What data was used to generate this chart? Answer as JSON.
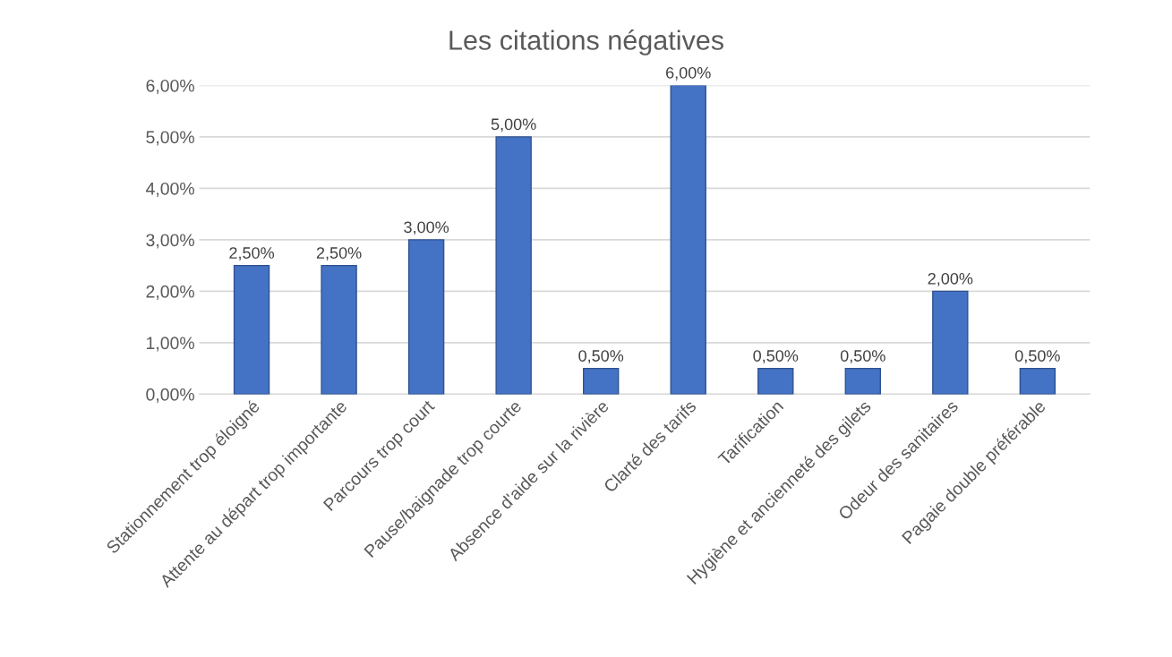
{
  "chart_data": {
    "type": "bar",
    "title": "Les citations négatives",
    "categories": [
      "Stationnement trop éloigné",
      "Attente au départ trop importante",
      "Parcours trop court",
      "Pause/baignade trop courte",
      "Absence d'aide sur la rivière",
      "Clarté des tarifs",
      "Tarification",
      "Hygiène et ancienneté des gilets",
      "Odeur des sanitaires",
      "Pagaie double préférable"
    ],
    "values": [
      2.5,
      2.5,
      3.0,
      5.0,
      0.5,
      6.0,
      0.5,
      0.5,
      2.0,
      0.5
    ],
    "value_labels": [
      "2,50%",
      "2,50%",
      "3,00%",
      "5,00%",
      "0,50%",
      "6,00%",
      "0,50%",
      "0,50%",
      "2,00%",
      "0,50%"
    ],
    "color": "#4472c4",
    "ylim": [
      0,
      6
    ],
    "yticks": [
      {
        "value": 0,
        "label": "0,00%"
      },
      {
        "value": 1,
        "label": "1,00%"
      },
      {
        "value": 2,
        "label": "2,00%"
      },
      {
        "value": 3,
        "label": "3,00%"
      },
      {
        "value": 4,
        "label": "4,00%"
      },
      {
        "value": 5,
        "label": "5,00%"
      },
      {
        "value": 6,
        "label": "6,00%"
      }
    ],
    "grid": "y",
    "legend": false
  }
}
